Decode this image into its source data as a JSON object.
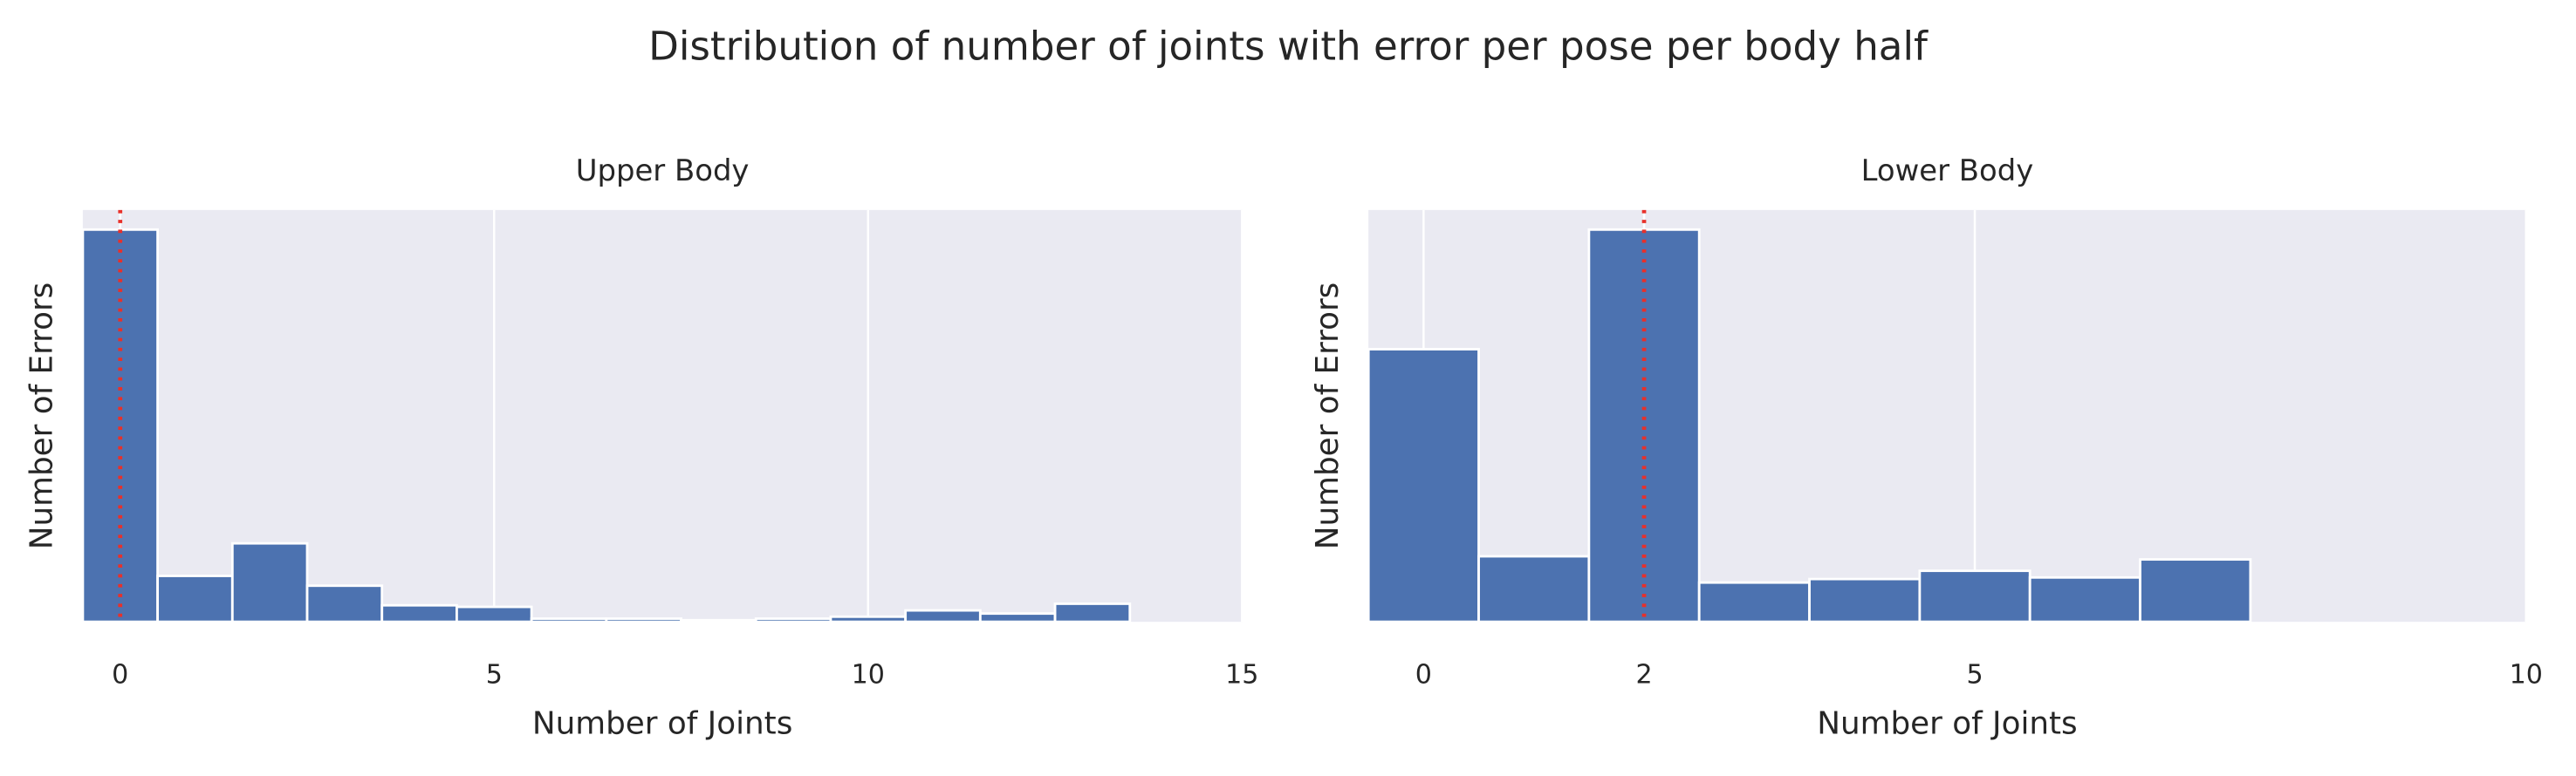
{
  "title": "Distribution of number of joints with error per pose per body half",
  "chart_data": [
    {
      "type": "histogram",
      "title": "Upper Body",
      "xlabel": "Number of Joints",
      "ylabel": "Number of Errors",
      "bins": [
        -0.5,
        0.5,
        1.5,
        2.5,
        3.5,
        4.5,
        5.5,
        6.5,
        7.5,
        8.5,
        9.5,
        10.5,
        11.5,
        12.5,
        13.5
      ],
      "values": [
        100,
        11.7,
        20,
        9.2,
        4.2,
        3.8,
        0.8,
        0.8,
        0.4,
        0.8,
        1.3,
        2.9,
        2.1,
        4.6
      ],
      "color": "#4c72b0",
      "xlim": [
        -0.5,
        15
      ],
      "xticks": [
        0,
        5,
        10,
        15
      ],
      "ylim": [
        0,
        105
      ],
      "vline": 0,
      "vline_color": "#e8302a",
      "grid": true
    },
    {
      "type": "histogram",
      "title": "Lower Body",
      "xlabel": "Number of Joints",
      "ylabel": "Number of Errors",
      "bins": [
        -0.5,
        0.5,
        1.5,
        2.5,
        3.5,
        4.5,
        5.5,
        6.5,
        7.5
      ],
      "values": [
        69.5,
        16.7,
        100,
        10,
        10.9,
        13,
        11.3,
        15.9
      ],
      "color": "#4c72b0",
      "xlim": [
        -0.5,
        10
      ],
      "xticks": [
        0,
        2,
        5,
        10
      ],
      "ylim": [
        0,
        105
      ],
      "vline": 2,
      "vline_color": "#e8302a",
      "grid": true
    }
  ]
}
